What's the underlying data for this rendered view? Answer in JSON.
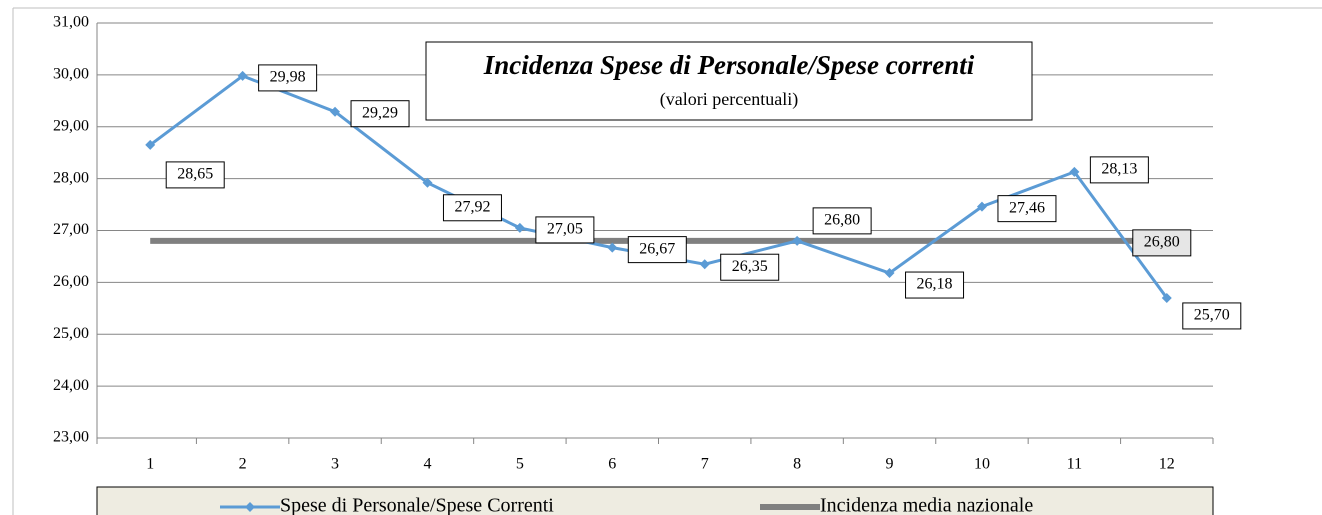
{
  "chart_data": {
    "type": "line",
    "title": "Incidenza Spese di Personale/Spese correnti",
    "subtitle": "(valori percentuali)",
    "categories": [
      "1",
      "2",
      "3",
      "4",
      "5",
      "6",
      "7",
      "8",
      "9",
      "10",
      "11",
      "12"
    ],
    "series": [
      {
        "name": "Spese di Personale/Spese Correnti",
        "color": "#5b9bd5",
        "values": [
          28.65,
          29.98,
          29.29,
          27.92,
          27.05,
          26.67,
          26.35,
          26.8,
          26.18,
          27.46,
          28.13,
          25.7
        ],
        "value_labels": [
          "28,65",
          "29,98",
          "29,29",
          "27,92",
          "27,05",
          "26,67",
          "26,35",
          "26,80",
          "26,18",
          "27,46",
          "28,13",
          "25,70"
        ]
      },
      {
        "name": "Incidenza media nazionale",
        "color": "#808080",
        "values": [
          26.8,
          26.8,
          26.8,
          26.8,
          26.8,
          26.8,
          26.8,
          26.8,
          26.8,
          26.8,
          26.8,
          26.8
        ],
        "value_labels": [
          null,
          null,
          null,
          null,
          null,
          null,
          null,
          null,
          null,
          null,
          null,
          "26,80"
        ]
      }
    ],
    "ylim": [
      23,
      31
    ],
    "yticks": [
      {
        "value": 23,
        "label": "23,00"
      },
      {
        "value": 24,
        "label": "24,00"
      },
      {
        "value": 25,
        "label": "25,00"
      },
      {
        "value": 26,
        "label": "26,00"
      },
      {
        "value": 27,
        "label": "27,00"
      },
      {
        "value": 28,
        "label": "28,00"
      },
      {
        "value": 29,
        "label": "29,00"
      },
      {
        "value": 30,
        "label": "30,00"
      },
      {
        "value": 31,
        "label": "31,00"
      }
    ],
    "grid": true,
    "legend": "bottom"
  }
}
